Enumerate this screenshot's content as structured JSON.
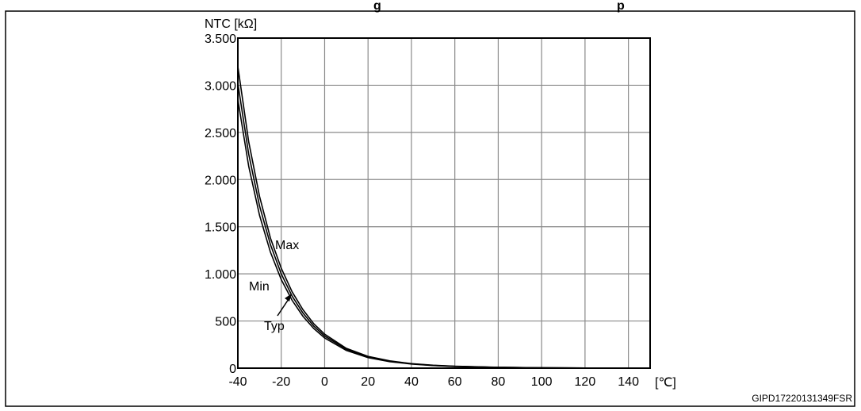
{
  "chart_data": {
    "type": "line",
    "title": "g",
    "title_fragment_right": "p",
    "ylabel": "NTC [kΩ]",
    "xlabel": "[℃]",
    "xlim": [
      -40,
      150
    ],
    "ylim": [
      0,
      3500
    ],
    "x_ticks": [
      -40,
      -20,
      0,
      20,
      40,
      60,
      80,
      100,
      120,
      140
    ],
    "y_ticks": [
      0,
      500,
      1000,
      1500,
      2000,
      2500,
      3000,
      3500
    ],
    "y_tick_labels": [
      "0",
      "500",
      "1.000",
      "1.500",
      "2.000",
      "2.500",
      "3.000",
      "3.500"
    ],
    "grid": true,
    "series": [
      {
        "name": "Max",
        "x": [
          -40,
          -35,
          -30,
          -25,
          -20,
          -15,
          -10,
          -5,
          0,
          10,
          20,
          30,
          40,
          50,
          60,
          80,
          100,
          120,
          150
        ],
        "y": [
          3200,
          2400,
          1820,
          1380,
          1060,
          810,
          620,
          470,
          360,
          210,
          125,
          77,
          48,
          31,
          20,
          9,
          4,
          2,
          1
        ]
      },
      {
        "name": "Typ",
        "x": [
          -40,
          -35,
          -30,
          -25,
          -20,
          -15,
          -10,
          -5,
          0,
          10,
          20,
          30,
          40,
          50,
          60,
          80,
          100,
          120,
          150
        ],
        "y": [
          3020,
          2270,
          1720,
          1310,
          1000,
          765,
          585,
          445,
          340,
          200,
          118,
          73,
          46,
          29,
          19,
          8,
          4,
          2,
          1
        ]
      },
      {
        "name": "Min",
        "x": [
          -40,
          -35,
          -30,
          -25,
          -20,
          -15,
          -10,
          -5,
          0,
          10,
          20,
          30,
          40,
          50,
          60,
          80,
          100,
          120,
          150
        ],
        "y": [
          2850,
          2140,
          1620,
          1230,
          940,
          720,
          550,
          420,
          320,
          188,
          112,
          69,
          44,
          28,
          18,
          8,
          4,
          2,
          1
        ]
      }
    ],
    "annotations": {
      "doc_code": "GIPD17220131349FSR"
    }
  }
}
